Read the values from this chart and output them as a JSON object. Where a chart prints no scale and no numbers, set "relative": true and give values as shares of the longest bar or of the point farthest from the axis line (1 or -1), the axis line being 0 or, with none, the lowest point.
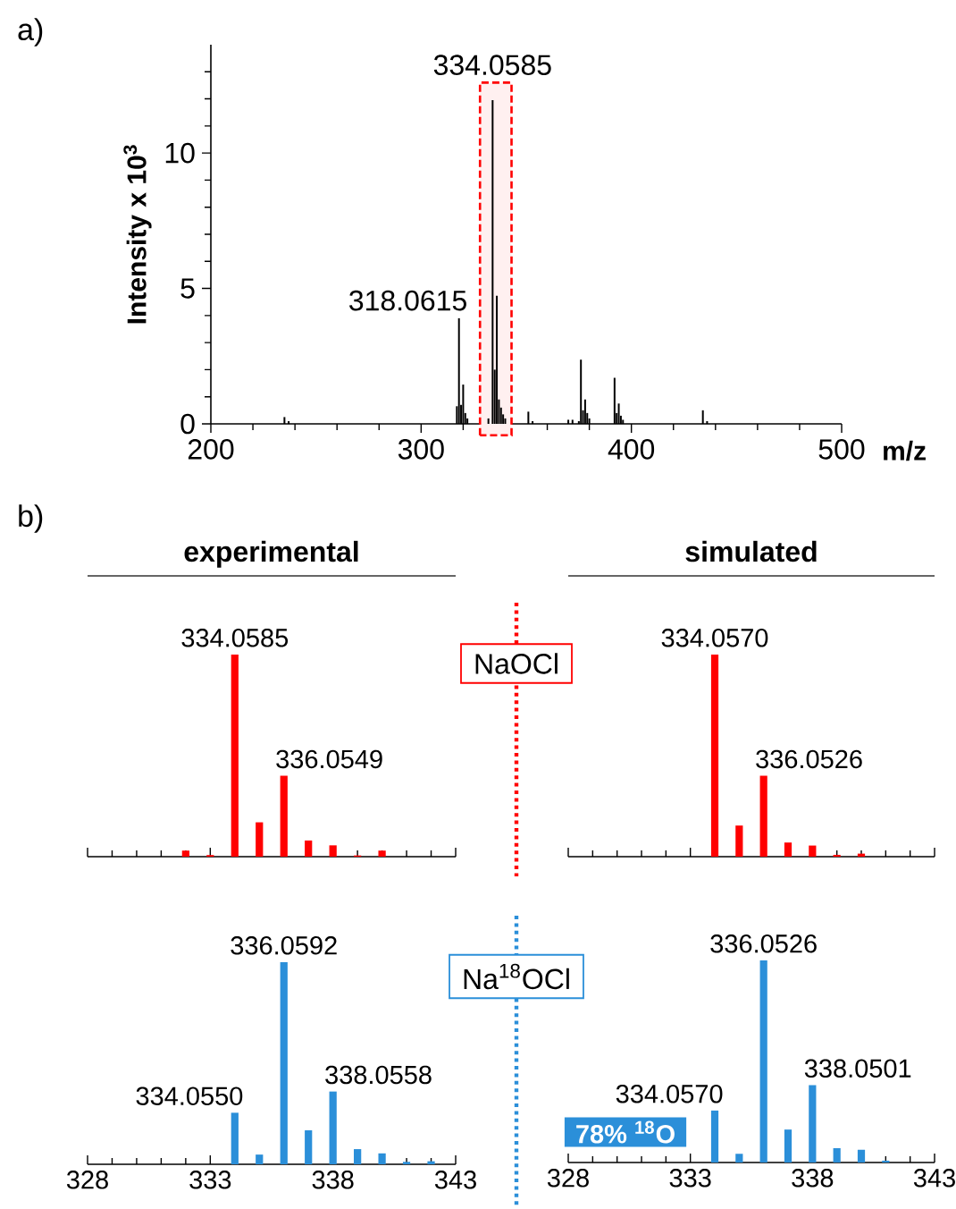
{
  "chart_data": [
    {
      "type": "bar",
      "title": "a)",
      "xlabel": "m/z",
      "ylabel": "Intensity x 10$^{3}$",
      "color": "#000000",
      "x": [
        235,
        237,
        317,
        318,
        319,
        320,
        321,
        322,
        332,
        334,
        335,
        336,
        337,
        338,
        339,
        340,
        351,
        353,
        370,
        372,
        375,
        376,
        377,
        378,
        379,
        380,
        392,
        393,
        394,
        395,
        396,
        434,
        436
      ],
      "values": [
        0.25,
        0.1,
        0.65,
        3.9,
        0.7,
        1.45,
        0.4,
        0.2,
        0.2,
        11.95,
        2.0,
        4.73,
        0.9,
        0.6,
        0.35,
        0.2,
        0.45,
        0.1,
        0.15,
        0.15,
        0.1,
        2.37,
        0.5,
        0.9,
        0.4,
        0.2,
        1.7,
        0.4,
        0.75,
        0.3,
        0.15,
        0.5,
        0.1
      ],
      "xlim": [
        200,
        500
      ],
      "xticks": [
        200,
        {
          "value": 220,
          "label": null
        },
        {
          "value": 240,
          "label": null
        },
        {
          "value": 260,
          "label": null
        },
        {
          "value": 280,
          "label": null
        },
        300,
        {
          "value": 320,
          "label": null
        },
        {
          "value": 340,
          "label": null
        },
        {
          "value": 360,
          "label": null
        },
        {
          "value": 380,
          "label": null
        },
        400,
        {
          "value": 420,
          "label": null
        },
        {
          "value": 440,
          "label": null
        },
        {
          "value": 460,
          "label": null
        },
        {
          "value": 480,
          "label": null
        },
        500
      ],
      "ylim": [
        0,
        14
      ],
      "yticks": [
        0,
        {
          "value": 1,
          "label": null
        },
        {
          "value": 2,
          "label": null
        },
        {
          "value": 3,
          "label": null
        },
        {
          "value": 4,
          "label": null
        },
        5,
        {
          "value": 6,
          "label": null
        },
        {
          "value": 7,
          "label": null
        },
        {
          "value": 8,
          "label": null
        },
        {
          "value": 9,
          "label": null
        },
        10,
        {
          "value": 11,
          "label": null
        },
        {
          "value": 12,
          "label": null
        },
        {
          "value": 13,
          "label": null
        }
      ],
      "bands": [
        {
          "axis": "x",
          "from": 328,
          "to": 343,
          "color": "#ff0000"
        }
      ],
      "annotations": [
        {
          "text": "334.0585",
          "x": 334,
          "y": 11.95
        },
        {
          "text": "318.0615",
          "x": 318,
          "y": 3.9
        }
      ]
    },
    {
      "type": "bar",
      "title": "b)",
      "subtitle": "experimental",
      "color": "#ff0000",
      "relative": true,
      "tick_labels": false,
      "x": [
        332,
        333,
        334,
        335,
        336,
        337,
        338,
        339,
        340
      ],
      "values": [
        0.03,
        0.008,
        1,
        0.17,
        0.4,
        0.08,
        0.056,
        0.006,
        0.03
      ],
      "xlim": [
        328,
        343
      ],
      "xticks": [
        328,
        {
          "value": 329,
          "label": null
        },
        {
          "value": 330,
          "label": null
        },
        {
          "value": 331,
          "label": null
        },
        {
          "value": 332,
          "label": null
        },
        333,
        {
          "value": 334,
          "label": null
        },
        {
          "value": 335,
          "label": null
        },
        {
          "value": 336,
          "label": null
        },
        {
          "value": 337,
          "label": null
        },
        338,
        {
          "value": 339,
          "label": null
        },
        {
          "value": 340,
          "label": null
        },
        {
          "value": 341,
          "label": null
        },
        {
          "value": 342,
          "label": null
        },
        343
      ],
      "annotations": [
        {
          "text": "334.0585",
          "x": 334,
          "y": 1
        },
        {
          "text": "336.0549",
          "x": 336,
          "y": 0.4
        },
        "NaOCl"
      ]
    },
    {
      "type": "bar",
      "subtitle": "simulated",
      "color": "#ff0000",
      "relative": true,
      "tick_labels": false,
      "x": [
        334,
        335,
        336,
        337,
        338,
        339,
        340
      ],
      "values": [
        1,
        0.154,
        0.4,
        0.07,
        0.055,
        0.009,
        0.015
      ],
      "xlim": [
        328,
        343
      ],
      "xticks": [
        328,
        {
          "value": 329,
          "label": null
        },
        {
          "value": 330,
          "label": null
        },
        {
          "value": 331,
          "label": null
        },
        {
          "value": 332,
          "label": null
        },
        333,
        {
          "value": 334,
          "label": null
        },
        {
          "value": 335,
          "label": null
        },
        {
          "value": 336,
          "label": null
        },
        {
          "value": 337,
          "label": null
        },
        338,
        {
          "value": 339,
          "label": null
        },
        {
          "value": 340,
          "label": null
        },
        {
          "value": 341,
          "label": null
        },
        {
          "value": 342,
          "label": null
        },
        343
      ],
      "annotations": [
        {
          "text": "334.0570",
          "x": 334,
          "y": 1
        },
        {
          "text": "336.0526",
          "x": 336,
          "y": 0.4
        }
      ]
    },
    {
      "type": "bar",
      "color": "#2b8fd9",
      "relative": true,
      "tick_labels": "x",
      "x": [
        334,
        335,
        336,
        337,
        338,
        339,
        340,
        341,
        342
      ],
      "values": [
        0.255,
        0.048,
        1,
        0.168,
        0.36,
        0.075,
        0.054,
        0.012,
        0.015
      ],
      "xlim": [
        328,
        343
      ],
      "xticks": [
        328,
        {
          "value": 329,
          "label": null
        },
        {
          "value": 330,
          "label": null
        },
        {
          "value": 331,
          "label": null
        },
        {
          "value": 332,
          "label": null
        },
        333,
        {
          "value": 334,
          "label": null
        },
        {
          "value": 335,
          "label": null
        },
        {
          "value": 336,
          "label": null
        },
        {
          "value": 337,
          "label": null
        },
        338,
        {
          "value": 339,
          "label": null
        },
        {
          "value": 340,
          "label": null
        },
        {
          "value": 341,
          "label": null
        },
        {
          "value": 342,
          "label": null
        },
        343
      ],
      "annotations": [
        {
          "text": "334.0550",
          "x": 334,
          "y": 0.255
        },
        {
          "text": "336.0592",
          "x": 336,
          "y": 1
        },
        {
          "text": "338.0558",
          "x": 338,
          "y": 0.36
        },
        "Na$^{18}$OCl"
      ]
    },
    {
      "type": "bar",
      "color": "#2b8fd9",
      "relative": true,
      "tick_labels": "x",
      "x": [
        334,
        335,
        336,
        337,
        338,
        339,
        340,
        341
      ],
      "values": [
        0.257,
        0.043,
        1,
        0.163,
        0.383,
        0.071,
        0.063,
        0.009
      ],
      "xlim": [
        328,
        343
      ],
      "xticks": [
        328,
        {
          "value": 329,
          "label": null
        },
        {
          "value": 330,
          "label": null
        },
        {
          "value": 331,
          "label": null
        },
        {
          "value": 332,
          "label": null
        },
        333,
        {
          "value": 334,
          "label": null
        },
        {
          "value": 335,
          "label": null
        },
        {
          "value": 336,
          "label": null
        },
        {
          "value": 337,
          "label": null
        },
        338,
        {
          "value": 339,
          "label": null
        },
        {
          "value": 340,
          "label": null
        },
        {
          "value": 341,
          "label": null
        },
        {
          "value": 342,
          "label": null
        },
        343
      ],
      "annotations": [
        {
          "text": "334.0570",
          "x": 334,
          "y": 0.257
        },
        {
          "text": "336.0526",
          "x": 336,
          "y": 1
        },
        {
          "text": "338.0501",
          "x": 338,
          "y": 0.383
        },
        "78% $^{18}$O"
      ]
    }
  ]
}
